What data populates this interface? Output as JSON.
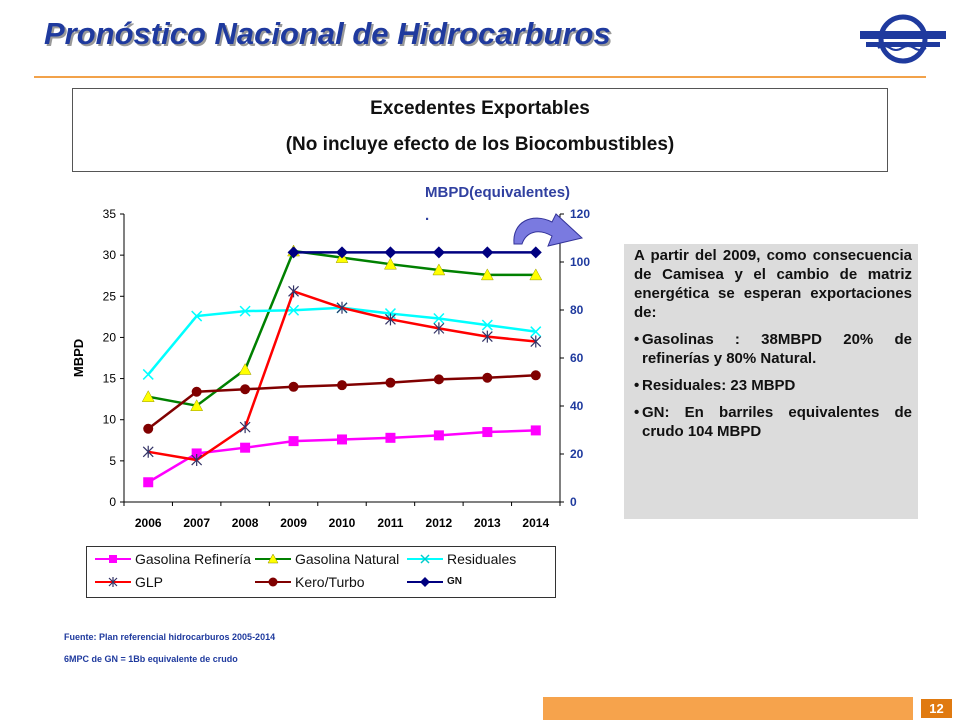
{
  "header": {
    "title": "Pronóstico Nacional de Hidrocarburos"
  },
  "box": {
    "line1": "Excedentes Exportables",
    "line2": "(No incluye efecto de los  Biocombustibles)"
  },
  "unit_label": "MBPD(equivalentes)",
  "unit_dot": ".",
  "info": {
    "intro": "A partir del 2009, como consecuencia de Camisea y el cambio de matriz energética se esperan exportaciones de:",
    "bullets": [
      "Gasolinas : 38MBPD  20% de refinerías y 80% Natural.",
      "Residuales: 23 MBPD",
      "GN: En barriles equivalentes de crudo 104 MBPD"
    ]
  },
  "notes": {
    "source": "Fuente: Plan referencial hidrocarburos 2005-2014",
    "equivalence": "6MPC de GN = 1Bb equivalente de crudo"
  },
  "page_number": "12",
  "chart_data": {
    "type": "line",
    "x": [
      "2006",
      "2007",
      "2008",
      "2009",
      "2010",
      "2011",
      "2012",
      "2013",
      "2014"
    ],
    "ylabel": "MBPD",
    "xlabel": "",
    "ylim": [
      0,
      35
    ],
    "y_ticks": [
      0,
      5,
      10,
      15,
      20,
      25,
      30,
      35
    ],
    "y2lim": [
      0,
      120
    ],
    "y2_ticks": [
      0,
      20,
      40,
      60,
      80,
      100,
      120
    ],
    "grid": false,
    "legend_position": "bottom",
    "series": [
      {
        "name": "Gasolina Refinería",
        "color": "#ff00ff",
        "marker": "square",
        "axis": "left",
        "values": [
          2.4,
          5.9,
          6.6,
          7.4,
          7.6,
          7.8,
          8.1,
          8.5,
          8.7
        ]
      },
      {
        "name": "Gasolina Natural",
        "color": "#008000",
        "marker_color": "#ffff00",
        "marker": "triangle",
        "axis": "left",
        "values": [
          12.8,
          11.7,
          16.1,
          30.5,
          29.7,
          28.9,
          28.2,
          27.6,
          27.6
        ]
      },
      {
        "name": "Residuales",
        "color": "#00ffff",
        "marker": "x",
        "axis": "left",
        "values": [
          15.5,
          22.6,
          23.2,
          23.3,
          23.6,
          22.9,
          22.3,
          21.5,
          20.7
        ]
      },
      {
        "name": "GLP",
        "color": "#ff0000",
        "marker_color": "#333366",
        "marker": "star",
        "axis": "left",
        "values": [
          6.1,
          5.1,
          9.1,
          25.6,
          23.6,
          22.2,
          21.1,
          20.1,
          19.5
        ]
      },
      {
        "name": "Kero/Turbo",
        "color": "#800000",
        "marker": "circle",
        "axis": "left",
        "values": [
          8.9,
          13.4,
          13.7,
          14.0,
          14.2,
          14.5,
          14.9,
          15.1,
          15.4
        ]
      },
      {
        "name": "GN",
        "color": "#000080",
        "marker": "diamond",
        "axis": "right",
        "x_start_index": 3,
        "values": [
          null,
          null,
          null,
          104,
          104,
          104,
          104,
          104,
          104
        ]
      }
    ]
  }
}
